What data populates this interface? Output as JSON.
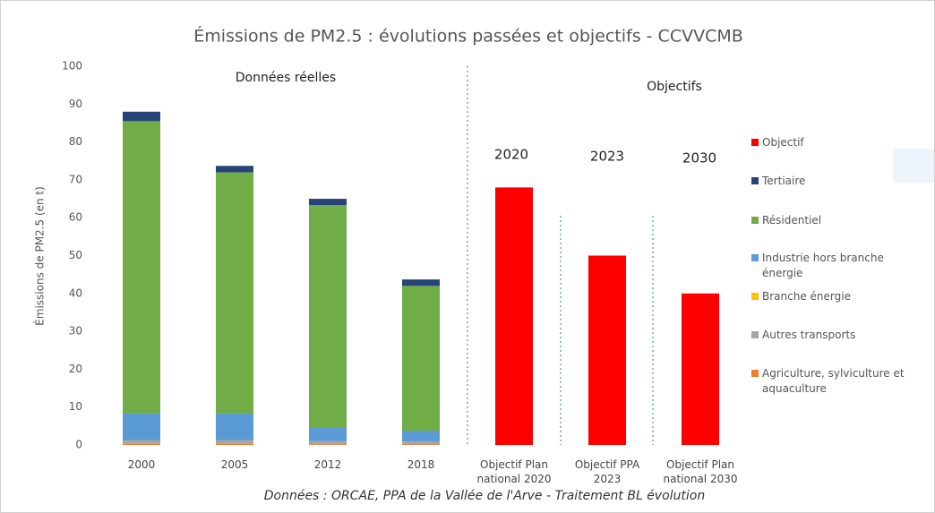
{
  "chart_data": {
    "type": "stacked_bar",
    "title": "Émissions de PM2.5 : évolutions passées et objectifs - CCVVCMB",
    "y_label": "Émissions de PM2.5 (en t)",
    "source": "Données : ORCAE, PPA de la Vallée de l'Arve - Traitement BL évolution",
    "annotations": {
      "real": "Données réelles",
      "objectives": "Objectifs",
      "y2020": "2020",
      "y2023": "2023",
      "y2030": "2030"
    },
    "categories": [
      "2000",
      "2005",
      "2012",
      "2018",
      "Objectif Plan national 2020",
      "Objectif PPA 2023",
      "Objectif Plan national 2030"
    ],
    "series": [
      {
        "name": "Agriculture, sylviculture et aquaculture",
        "color": "#ed7d31",
        "values": [
          0.3,
          0.3,
          0.2,
          0.2,
          null,
          null,
          null
        ]
      },
      {
        "name": "Autres transports",
        "color": "#a5a5a5",
        "values": [
          1,
          1,
          0.8,
          0.7,
          null,
          null,
          null
        ]
      },
      {
        "name": "Branche énergie",
        "color": "#ffc000",
        "values": [
          0,
          0,
          0,
          0,
          null,
          null,
          null
        ]
      },
      {
        "name": "Industrie hors branche énergie",
        "color": "#5b9bd5",
        "values": [
          7,
          7,
          3.5,
          2.9,
          null,
          null,
          null
        ]
      },
      {
        "name": "Résidentiel",
        "color": "#70ad47",
        "values": [
          77.2,
          63.7,
          58.8,
          38.2,
          null,
          null,
          null
        ]
      },
      {
        "name": "Tertiaire",
        "color": "#264478",
        "values": [
          2.5,
          1.7,
          1.7,
          1.7,
          null,
          null,
          null
        ]
      },
      {
        "name": "Objectif",
        "color": "#ff0000",
        "values": [
          null,
          null,
          null,
          null,
          68,
          50,
          40
        ]
      }
    ],
    "ylim": [
      0,
      100
    ],
    "yticks": [
      0,
      10,
      20,
      30,
      40,
      50,
      60,
      70,
      80,
      90,
      100
    ],
    "grid": false
  }
}
